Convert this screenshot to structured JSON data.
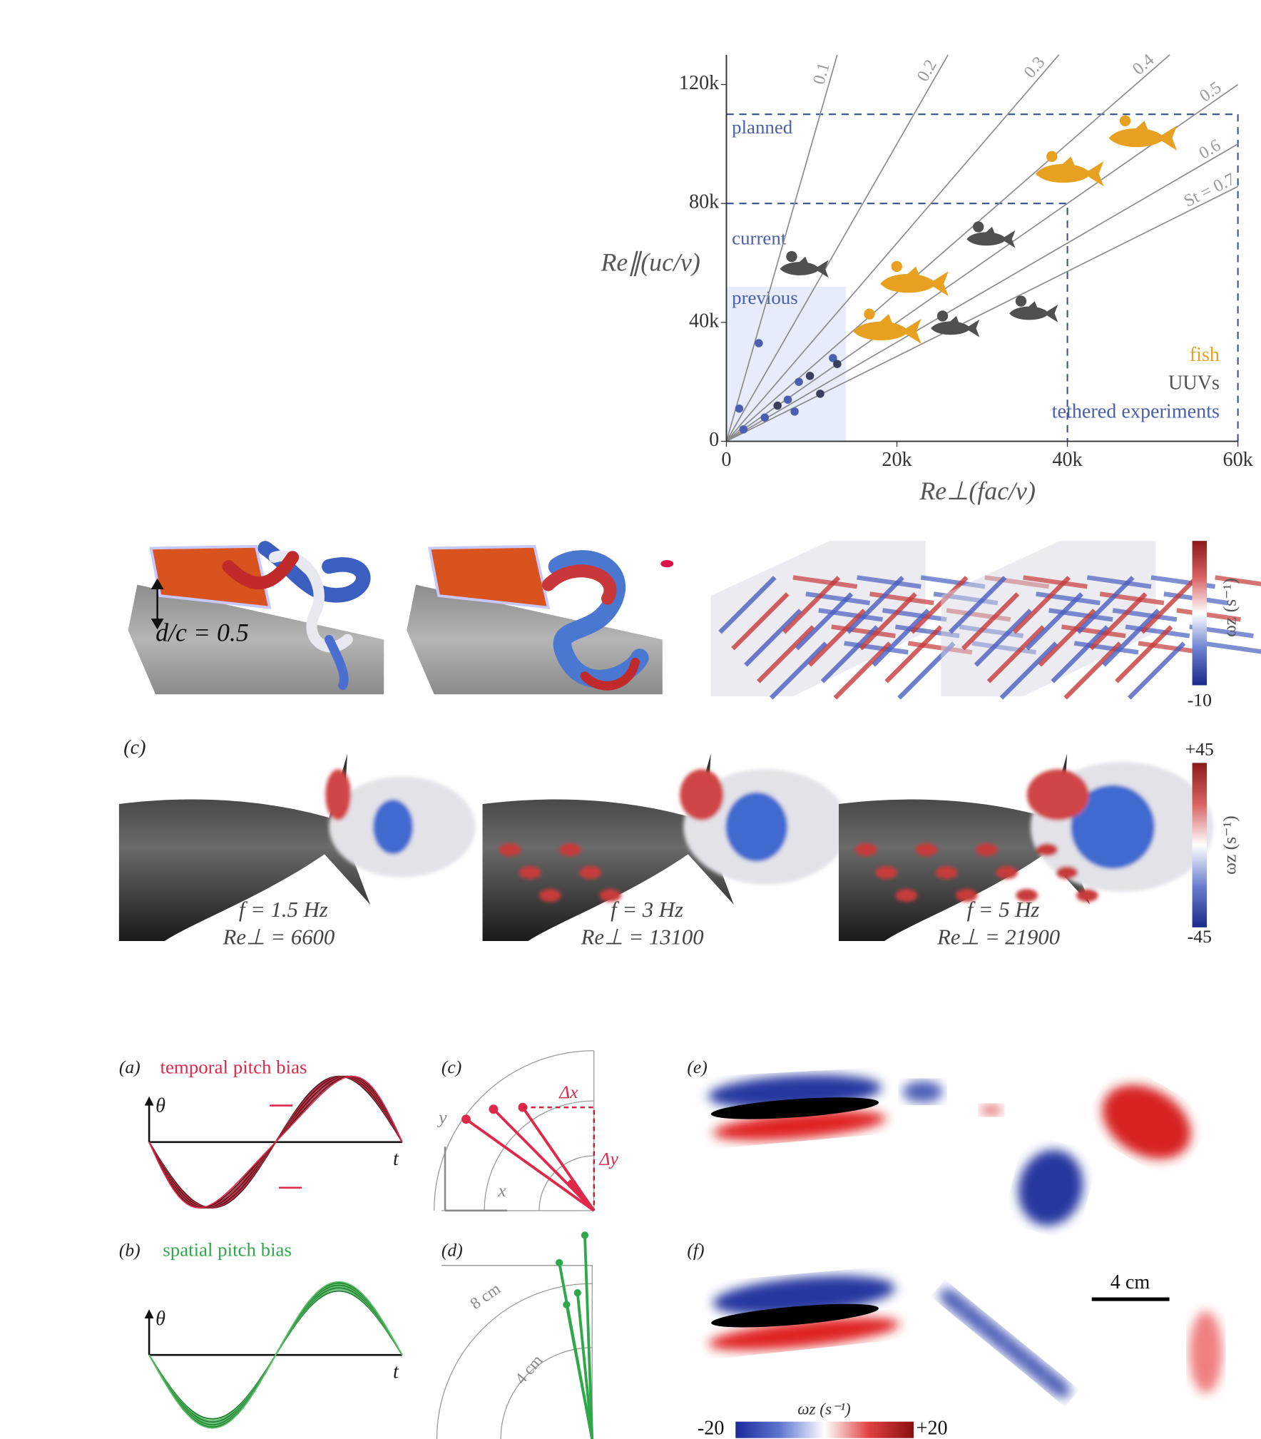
{
  "chart_data": {
    "type": "scatter",
    "x_label": "Re⊥(fac/ν)",
    "y_label": "Re∥(uc/ν)",
    "xlim": [
      0,
      60000
    ],
    "xticks": [
      0,
      {
        "value": 20000,
        "label": "20k"
      },
      {
        "value": 40000,
        "label": "40k"
      },
      {
        "value": 60000,
        "label": "60k"
      }
    ],
    "ylim": [
      0,
      130000
    ],
    "yticks": [
      0,
      {
        "value": 40000,
        "label": "40k"
      },
      {
        "value": 80000,
        "label": "80k"
      },
      {
        "value": 120000,
        "label": "120k"
      }
    ],
    "st_lines": [
      0.1,
      0.2,
      0.3,
      0.4,
      0.5,
      0.6,
      {
        "value": 0.7,
        "label": "St = 0.7"
      }
    ],
    "regions": [
      {
        "label": "planned",
        "x": 60000,
        "y": 110000
      },
      {
        "label": "current",
        "x": 40000,
        "y": 80000
      },
      {
        "label": "previous",
        "x": 14000,
        "y": 52000
      }
    ],
    "series": [
      {
        "name": "fish",
        "color": "#e8a020",
        "x": [
          48800,
          40200,
          22000,
          18800
        ],
        "values": [
          102000,
          90000,
          53000,
          37000
        ]
      },
      {
        "name": "UUVs",
        "color": "#505050",
        "x": [
          9100,
          31000,
          26800,
          36000
        ],
        "values": [
          58000,
          68000,
          38000,
          43000
        ]
      },
      {
        "name": "tethered experiments",
        "color": "#4a5fb0",
        "x": [
          9800,
          12500,
          8000,
          6000,
          2000,
          4500,
          11000,
          8500,
          1500,
          13000,
          3800,
          7200
        ],
        "values": [
          22000,
          28000,
          10000,
          12000,
          4000,
          8000,
          16000,
          20000,
          11000,
          26000,
          33000,
          14000
        ]
      }
    ]
  },
  "figure": {
    "top_row": {
      "dc_label": "d/c = 0.5",
      "colorbar_min": "-10",
      "colorbar_label": "ωz (s⁻¹)"
    },
    "middle_row": {
      "panel": "(c)",
      "colorbar_max": "+45",
      "colorbar_min": "-45",
      "colorbar_label": "ωz (s⁻¹)",
      "cases": [
        {
          "f": "f = 1.5 Hz",
          "re": "Re⊥ = 6600"
        },
        {
          "f": "f = 3 Hz",
          "re": "Re⊥ = 13100"
        },
        {
          "f": "f = 5 Hz",
          "re": "Re⊥ = 21900"
        }
      ]
    },
    "bottom": {
      "a": {
        "label": "(a)",
        "title": "temporal pitch bias",
        "theta": "θ",
        "t": "t"
      },
      "b": {
        "label": "(b)",
        "title": "spatial pitch bias",
        "theta": "θ",
        "t": "t"
      },
      "c": {
        "label": "(c)",
        "dx": "Δx",
        "dy": "Δy",
        "x": "x",
        "y": "y"
      },
      "d": {
        "label": "(d)",
        "r1": "4 cm",
        "r2": "8 cm"
      },
      "e": {
        "label": "(e)"
      },
      "f": {
        "label": "(f)",
        "scale": "4 cm",
        "cb_min": "-20",
        "cb_max": "+20",
        "cb_label": "ωz (s⁻¹)"
      }
    }
  }
}
